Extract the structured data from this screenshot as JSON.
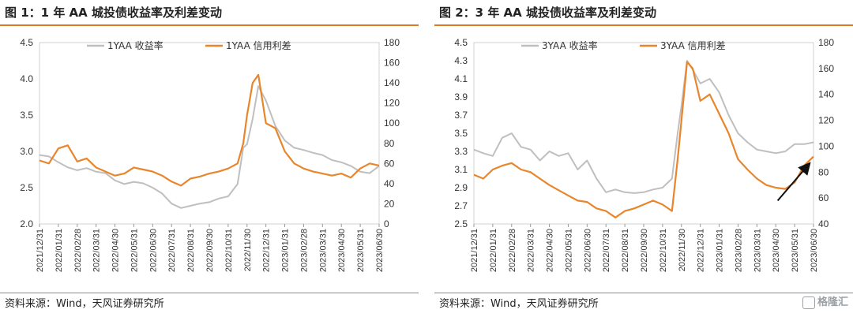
{
  "charts": [
    {
      "title": "图 1：1 年 AA 城投债收益率及利差变动",
      "source": "资料来源：Wind，天风证券研究所",
      "chart_data": {
        "type": "line",
        "x": [
          "2021/12/31",
          "2022/01/31",
          "2022/02/28",
          "2022/03/31",
          "2022/04/30",
          "2022/05/31",
          "2022/06/30",
          "2022/07/31",
          "2022/08/31",
          "2022/09/30",
          "2022/10/31",
          "2022/11/30",
          "2022/12/31",
          "2023/01/31",
          "2023/02/28",
          "2023/03/31",
          "2023/04/30",
          "2023/05/31",
          "2023/06/30"
        ],
        "x_tick_labels": [
          "2021/12/31",
          "2022/01/31",
          "2022/02/28",
          "2022/03/31",
          "2022/04/30",
          "2022/05/31",
          "2022/06/30",
          "2022/07/31",
          "2022/08/31",
          "2022/09/30",
          "2022/10/31",
          "2022/11/30",
          "2022/12/31",
          "2023/01/31",
          "2023/02/28",
          "2023/03/31",
          "2023/04/30",
          "2023/05/31",
          "2023/06/30"
        ],
        "y_left": {
          "min": 2.0,
          "max": 4.5,
          "ticks": [
            "2.0",
            "2.5",
            "3.0",
            "3.5",
            "4.0",
            "4.5"
          ]
        },
        "y_right": {
          "min": 0,
          "max": 180,
          "ticks": [
            "0",
            "20",
            "40",
            "60",
            "80",
            "100",
            "120",
            "140",
            "160",
            "180"
          ]
        },
        "series": [
          {
            "name": "1YAA 收益率",
            "axis": "left",
            "color": "#bfbfbf",
            "x": [
              0,
              0.5,
              1,
              1.5,
              2,
              2.5,
              3,
              3.5,
              4,
              4.5,
              5,
              5.5,
              6,
              6.5,
              7,
              7.5,
              8,
              8.5,
              9,
              9.5,
              10,
              10.5,
              10.8,
              11,
              11.3,
              11.6,
              12,
              12.5,
              13,
              13.5,
              14,
              14.5,
              15,
              15.5,
              16,
              16.5,
              17,
              17.5,
              18
            ],
            "values": [
              2.95,
              2.93,
              2.85,
              2.78,
              2.74,
              2.77,
              2.72,
              2.7,
              2.6,
              2.55,
              2.58,
              2.56,
              2.5,
              2.42,
              2.28,
              2.22,
              2.25,
              2.28,
              2.3,
              2.35,
              2.38,
              2.55,
              3.05,
              3.1,
              3.45,
              3.9,
              3.7,
              3.35,
              3.15,
              3.05,
              3.02,
              2.98,
              2.95,
              2.88,
              2.85,
              2.8,
              2.72,
              2.7,
              2.8
            ]
          },
          {
            "name": "1YAA 信用利差",
            "axis": "right",
            "color": "#e9852b",
            "x": [
              0,
              0.5,
              1,
              1.5,
              2,
              2.5,
              3,
              3.5,
              4,
              4.5,
              5,
              5.5,
              6,
              6.5,
              7,
              7.5,
              8,
              8.5,
              9,
              9.5,
              10,
              10.5,
              10.8,
              11,
              11.3,
              11.6,
              12,
              12.5,
              13,
              13.5,
              14,
              14.5,
              15,
              15.5,
              16,
              16.5,
              17,
              17.5,
              18
            ],
            "values": [
              63,
              60,
              75,
              78,
              62,
              65,
              56,
              52,
              48,
              50,
              56,
              54,
              52,
              48,
              42,
              38,
              45,
              47,
              50,
              52,
              55,
              60,
              80,
              108,
              140,
              148,
              100,
              95,
              72,
              60,
              55,
              52,
              50,
              48,
              50,
              46,
              55,
              60,
              58
            ]
          }
        ]
      }
    },
    {
      "title": "图 2：3 年 AA 城投债收益率及利差变动",
      "source": "资料来源：Wind，天风证券研究所",
      "chart_data": {
        "type": "line",
        "x": [
          "2021/12/31",
          "2022/01/31",
          "2022/02/28",
          "2022/03/31",
          "2022/04/30",
          "2022/05/31",
          "2022/06/30",
          "2022/07/31",
          "2022/08/31",
          "2022/09/30",
          "2022/10/31",
          "2022/11/30",
          "2022/12/31",
          "2023/01/31",
          "2023/02/28",
          "2023/03/31",
          "2023/04/30",
          "2023/05/31",
          "2023/06/30"
        ],
        "x_tick_labels": [
          "2021/12/31",
          "2022/01/31",
          "2022/02/28",
          "2022/03/31",
          "2022/04/30",
          "2022/05/31",
          "2022/06/30",
          "2022/07/31",
          "2022/08/31",
          "2022/09/30",
          "2022/10/31",
          "2022/11/30",
          "2022/12/31",
          "2023/01/31",
          "2023/02/28",
          "2023/03/31",
          "2023/04/30",
          "2023/05/31",
          "2023/06/30"
        ],
        "y_left": {
          "min": 2.5,
          "max": 4.5,
          "ticks": [
            "2.5",
            "2.7",
            "2.9",
            "3.1",
            "3.3",
            "3.5",
            "3.7",
            "3.9",
            "4.1",
            "4.3",
            "4.5"
          ]
        },
        "y_right": {
          "min": 40,
          "max": 180,
          "ticks": [
            "40",
            "60",
            "80",
            "100",
            "120",
            "140",
            "160",
            "180"
          ]
        },
        "series": [
          {
            "name": "3YAA 收益率",
            "axis": "left",
            "color": "#bfbfbf",
            "x": [
              0,
              0.5,
              1,
              1.5,
              2,
              2.5,
              3,
              3.5,
              4,
              4.5,
              5,
              5.5,
              6,
              6.5,
              7,
              7.5,
              8,
              8.5,
              9,
              9.5,
              10,
              10.5,
              10.8,
              11,
              11.3,
              11.6,
              12,
              12.5,
              13,
              13.5,
              14,
              14.5,
              15,
              15.5,
              16,
              16.5,
              17,
              17.5,
              18
            ],
            "values": [
              3.32,
              3.28,
              3.25,
              3.45,
              3.5,
              3.35,
              3.32,
              3.2,
              3.3,
              3.25,
              3.28,
              3.1,
              3.2,
              3.0,
              2.85,
              2.88,
              2.85,
              2.84,
              2.85,
              2.88,
              2.9,
              3.0,
              3.5,
              3.8,
              4.3,
              4.2,
              4.05,
              4.1,
              3.95,
              3.7,
              3.5,
              3.4,
              3.32,
              3.3,
              3.28,
              3.3,
              3.38,
              3.38,
              3.4
            ]
          },
          {
            "name": "3YAA 信用利差",
            "axis": "right",
            "color": "#e9852b",
            "x": [
              0,
              0.5,
              1,
              1.5,
              2,
              2.5,
              3,
              3.5,
              4,
              4.5,
              5,
              5.5,
              6,
              6.5,
              7,
              7.5,
              8,
              8.5,
              9,
              9.5,
              10,
              10.5,
              10.8,
              11,
              11.3,
              11.6,
              12,
              12.5,
              13,
              13.5,
              14,
              14.5,
              15,
              15.5,
              16,
              16.5,
              17,
              17.5,
              18
            ],
            "values": [
              78,
              75,
              82,
              85,
              87,
              82,
              80,
              75,
              70,
              66,
              62,
              58,
              57,
              52,
              50,
              45,
              50,
              52,
              55,
              58,
              55,
              50,
              90,
              120,
              165,
              160,
              135,
              140,
              125,
              110,
              90,
              82,
              75,
              70,
              68,
              67,
              72,
              85,
              92
            ]
          }
        ],
        "annotation": "arrow pointing up-right toward the end of the 3YAA 信用利差 series"
      }
    }
  ]
}
